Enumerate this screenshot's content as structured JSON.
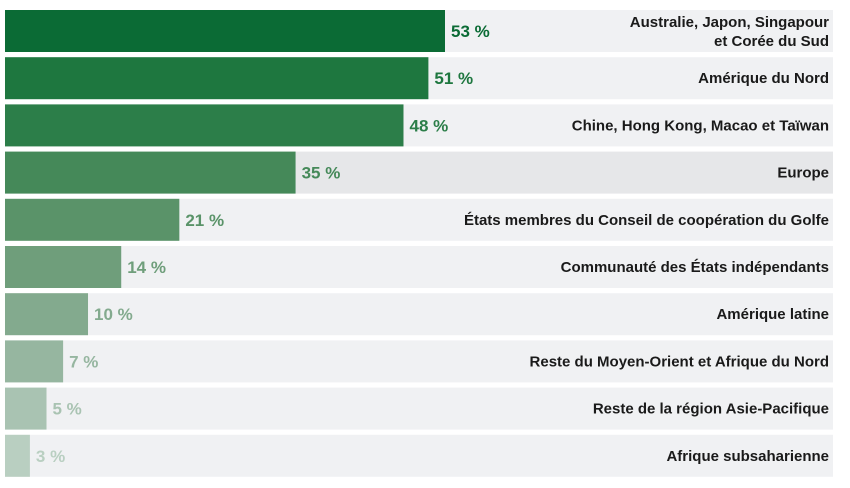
{
  "chart_data": {
    "type": "bar",
    "orientation": "horizontal",
    "categories": [
      [
        "Australie, Japon, Singapour",
        "et Corée du Sud"
      ],
      [
        "Amérique du Nord"
      ],
      [
        "Chine, Hong Kong, Macao et Taïwan"
      ],
      [
        "Europe"
      ],
      [
        "États membres du Conseil de coopération du Golfe"
      ],
      [
        "Communauté des États indépendants"
      ],
      [
        "Amérique latine"
      ],
      [
        "Reste du Moyen-Orient et Afrique du Nord"
      ],
      [
        "Reste de la région Asie-Pacifique"
      ],
      [
        "Afrique subsaharienne"
      ]
    ],
    "values": [
      53,
      51,
      48,
      35,
      21,
      14,
      10,
      7,
      5,
      3
    ],
    "value_labels": [
      "53 %",
      "51 %",
      "48 %",
      "35 %",
      "21 %",
      "14 %",
      "10 %",
      "7 %",
      "5 %",
      "3 %"
    ],
    "highlight_index": 3,
    "xlim": [
      0,
      100
    ],
    "grid": false,
    "legend": "none",
    "colors": [
      "#0b6b35",
      "#1e773f",
      "#2c7e49",
      "#458959",
      "#5a9369",
      "#6f9e7b",
      "#83aa8e",
      "#96b6a0",
      "#a9c3b2",
      "#b9cfc1"
    ]
  }
}
